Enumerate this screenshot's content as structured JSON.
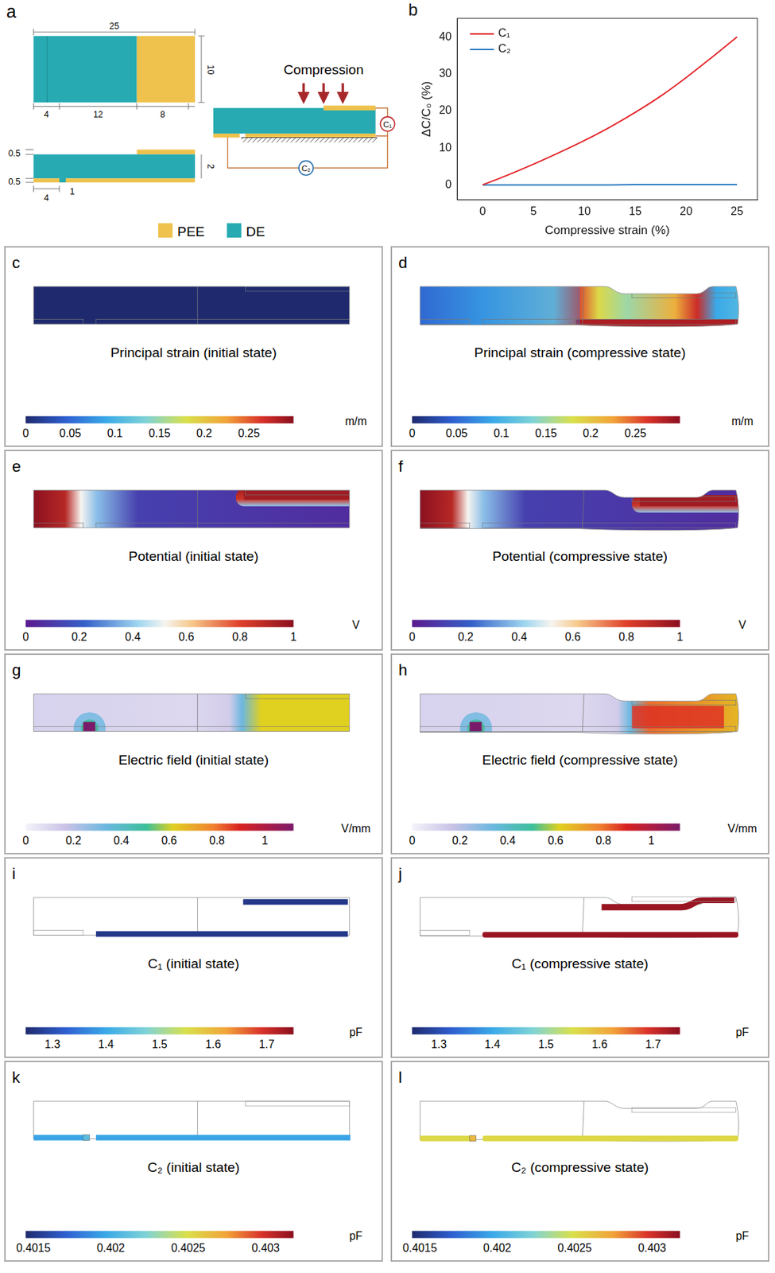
{
  "panel_a": {
    "letter": "a",
    "top_view": {
      "length": 25,
      "width": 10,
      "segments": [
        4,
        12,
        8
      ]
    },
    "side_view": {
      "top_layer": 0.5,
      "bottom_layer": 0.5,
      "thickness": 2,
      "offset": 4,
      "gap": 1
    },
    "compression": "Compression",
    "capacitors": [
      "C₁",
      "C₂"
    ],
    "materials": [
      {
        "name": "PEE",
        "color": "#eec24c"
      },
      {
        "name": "DE",
        "color": "#27aab2"
      }
    ]
  },
  "panel_b": {
    "letter": "b"
  },
  "chart_data": {
    "type": "line",
    "x_label": "Compressive strain (%)",
    "y_label": "ΔC/C₀ (%)",
    "x": [
      0,
      2.5,
      5,
      7.5,
      10,
      12.5,
      15,
      17.5,
      20,
      22.5,
      25
    ],
    "series": [
      {
        "name": "C₁",
        "color": "#e3262b",
        "values": [
          0,
          2.7,
          5.6,
          8.7,
          12.0,
          15.6,
          19.6,
          24.0,
          29.0,
          34.4,
          40.0
        ]
      },
      {
        "name": "C₂",
        "color": "#2c7bc4",
        "values": [
          0,
          0,
          0,
          0,
          0,
          0,
          0.1,
          0.1,
          0.1,
          0.1,
          0.1
        ]
      }
    ],
    "xlim": [
      -2.5,
      27
    ],
    "ylim": [
      -4,
      45
    ],
    "xticks": [
      0,
      5,
      10,
      15,
      20,
      25
    ],
    "yticks": [
      0,
      10,
      20,
      30,
      40
    ],
    "legend": "upper left",
    "grid": false
  },
  "field_panels": [
    {
      "letter": "c",
      "title": "Principal strain (initial state)",
      "colorbar": {
        "range": [
          0,
          0.3
        ],
        "ticks": [
          0,
          0.05,
          0.1,
          0.15,
          0.2,
          0.25
        ],
        "unit": "m/m"
      }
    },
    {
      "letter": "d",
      "title": "Principal strain (compressive state)",
      "colorbar": {
        "range": [
          0,
          0.3
        ],
        "ticks": [
          0,
          0.05,
          0.1,
          0.15,
          0.2,
          0.25
        ],
        "unit": "m/m"
      }
    },
    {
      "letter": "e",
      "title": "Potential (initial state)",
      "colorbar": {
        "range": [
          0,
          1
        ],
        "ticks": [
          0,
          0.2,
          0.4,
          0.6,
          0.8,
          1
        ],
        "unit": "V"
      }
    },
    {
      "letter": "f",
      "title": "Potential (compressive state)",
      "colorbar": {
        "range": [
          0,
          1
        ],
        "ticks": [
          0,
          0.2,
          0.4,
          0.6,
          0.8,
          1
        ],
        "unit": "V"
      }
    },
    {
      "letter": "g",
      "title": "Electric field (initial state)",
      "colorbar": {
        "range": [
          0,
          1.12
        ],
        "ticks": [
          0,
          0.2,
          0.4,
          0.6,
          0.8,
          1
        ],
        "unit": "V/mm"
      }
    },
    {
      "letter": "h",
      "title": "Electric field (compressive state)",
      "colorbar": {
        "range": [
          0,
          1.12
        ],
        "ticks": [
          0,
          0.2,
          0.4,
          0.6,
          0.8,
          1
        ],
        "unit": "V/mm"
      }
    },
    {
      "letter": "i",
      "title": "C₁ (initial state)",
      "value": 1.27,
      "colorbar": {
        "range": [
          1.25,
          1.75
        ],
        "ticks": [
          1.3,
          1.4,
          1.5,
          1.6,
          1.7
        ],
        "unit": "pF"
      }
    },
    {
      "letter": "j",
      "title": "C₁ (compressive state)",
      "value": 1.74,
      "colorbar": {
        "range": [
          1.25,
          1.75
        ],
        "ticks": [
          1.3,
          1.4,
          1.5,
          1.6,
          1.7
        ],
        "unit": "pF"
      }
    },
    {
      "letter": "k",
      "title": "C₂ (initial state)",
      "value": 0.40195,
      "colorbar": {
        "range": [
          0.40145,
          0.40318
        ],
        "ticks": [
          0.4015,
          0.402,
          0.4025,
          0.403
        ],
        "unit": "pF"
      }
    },
    {
      "letter": "l",
      "title": "C₂ (compressive state)",
      "value": 0.40252,
      "colorbar": {
        "range": [
          0.40145,
          0.40318
        ],
        "ticks": [
          0.4015,
          0.402,
          0.4025,
          0.403
        ],
        "unit": "pF"
      }
    }
  ]
}
